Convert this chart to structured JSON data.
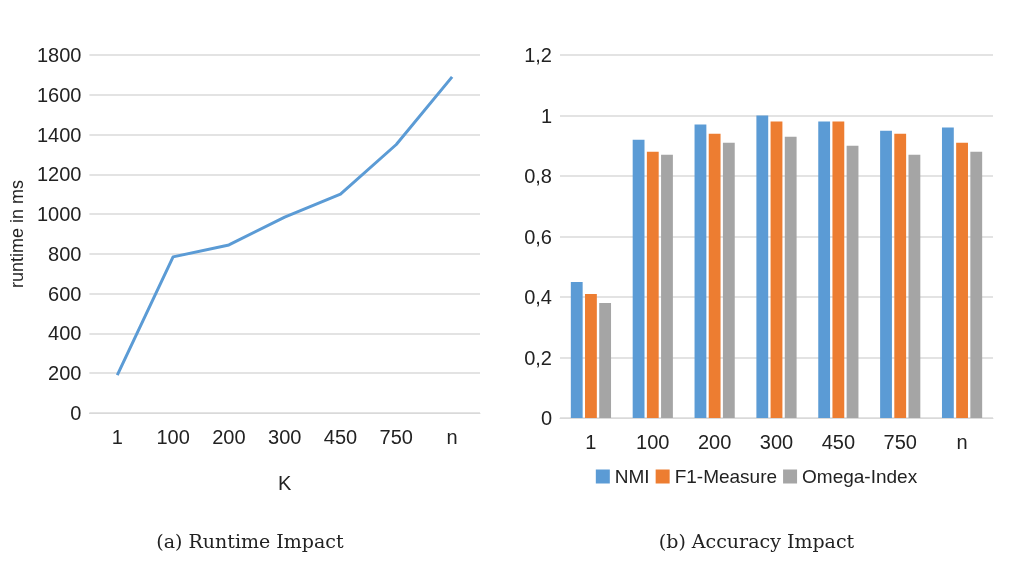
{
  "chart_data": [
    {
      "type": "line",
      "title": "(a) Runtime Impact",
      "xlabel": "K",
      "ylabel": "runtime in ms",
      "categories": [
        "1",
        "100",
        "200",
        "300",
        "450",
        "750",
        "n"
      ],
      "series": [
        {
          "color": "#5b9bd5",
          "values": [
            190,
            785,
            845,
            985,
            1100,
            1350,
            1690
          ]
        }
      ],
      "ylim": [
        0,
        1800
      ],
      "yticks": [
        0,
        200,
        400,
        600,
        800,
        1000,
        1200,
        1400,
        1600,
        1800
      ],
      "grid": "y",
      "legend": false,
      "marker": "none"
    },
    {
      "type": "bar",
      "title": "(b) Accuracy Impact",
      "categories": [
        "1",
        "100",
        "200",
        "300",
        "450",
        "750",
        "n"
      ],
      "series": [
        {
          "name": "NMI",
          "color": "#5b9bd5",
          "values": [
            0.45,
            0.92,
            0.97,
            1.0,
            0.98,
            0.95,
            0.96
          ]
        },
        {
          "name": "F1-Measure",
          "color": "#ed7d31",
          "values": [
            0.41,
            0.88,
            0.94,
            0.98,
            0.98,
            0.94,
            0.91
          ]
        },
        {
          "name": "Omega-Index",
          "color": "#a5a5a5",
          "values": [
            0.38,
            0.87,
            0.91,
            0.93,
            0.9,
            0.87,
            0.88
          ]
        }
      ],
      "ylim": [
        0,
        1.2
      ],
      "yticks": [
        0,
        {
          "value": 0.2,
          "label": "0,2"
        },
        {
          "value": 0.4,
          "label": "0,4"
        },
        {
          "value": 0.6,
          "label": "0,6"
        },
        {
          "value": 0.8,
          "label": "0,8"
        },
        1,
        {
          "value": 1.2,
          "label": "1,2"
        }
      ],
      "grid": "y",
      "legend": "bottom"
    }
  ]
}
